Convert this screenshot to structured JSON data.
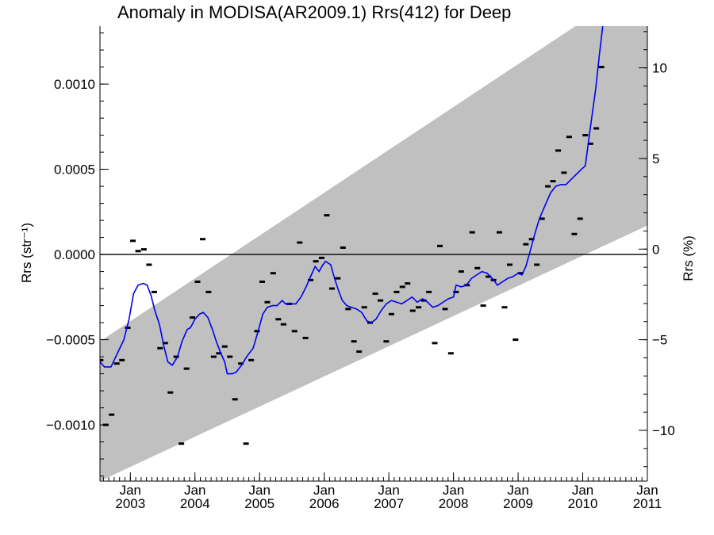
{
  "chart_data": {
    "type": "scatter",
    "title": "Anomaly in MODISA(AR2009.1) Rrs(412) for Deep",
    "ylabel": "Rrs (str⁻¹)",
    "y2label": "Rrs (%)",
    "xlim": [
      2002.53,
      2011.0
    ],
    "ylim": [
      -0.00133,
      0.00134
    ],
    "y2lim": [
      -12.8,
      12.3
    ],
    "y_ticks": [
      -0.001,
      -0.0005,
      0.0,
      0.0005,
      0.001
    ],
    "y_tick_labels": [
      "−0.0010",
      "−0.0005",
      "0.0000",
      "0.0005",
      "0.0010"
    ],
    "y2_ticks": [
      -10,
      -5,
      0,
      5,
      10
    ],
    "y2_tick_labels": [
      "−10",
      "−5",
      "0",
      "5",
      "10"
    ],
    "x_ticks": [
      2003,
      2004,
      2005,
      2006,
      2007,
      2008,
      2009,
      2010,
      2011
    ],
    "x_tick_month": "Jan",
    "x_tick_labels": [
      "2003",
      "2004",
      "2005",
      "2006",
      "2007",
      "2008",
      "2009",
      "2010",
      "2011"
    ],
    "zero_line": 0.0,
    "grid": false,
    "colors": {
      "band": "#c0c0c0",
      "smooth_line": "#0000ee",
      "markers": "#000000"
    },
    "band": {
      "upper": [
        [
          2002.53,
          -0.00051
        ],
        [
          2011.0,
          0.00162
        ]
      ],
      "lower": [
        [
          2002.53,
          -0.00133
        ],
        [
          2011.0,
          0.00017
        ]
      ]
    },
    "points": [
      [
        2002.54,
        -0.00062
      ],
      [
        2002.62,
        -0.001
      ],
      [
        2002.71,
        -0.00094
      ],
      [
        2002.79,
        -0.00064
      ],
      [
        2002.87,
        -0.00062
      ],
      [
        2002.96,
        -0.00043
      ],
      [
        2003.04,
        8e-05
      ],
      [
        2003.12,
        2e-05
      ],
      [
        2003.21,
        3e-05
      ],
      [
        2003.29,
        -6e-05
      ],
      [
        2003.37,
        -0.00022
      ],
      [
        2003.46,
        -0.00055
      ],
      [
        2003.54,
        -0.00052
      ],
      [
        2003.62,
        -0.00081
      ],
      [
        2003.71,
        -0.0006
      ],
      [
        2003.79,
        -0.00111
      ],
      [
        2003.87,
        -0.00067
      ],
      [
        2003.96,
        -0.00037
      ],
      [
        2004.04,
        -0.00016
      ],
      [
        2004.12,
        9e-05
      ],
      [
        2004.21,
        -0.00022
      ],
      [
        2004.29,
        -0.0006
      ],
      [
        2004.37,
        -0.00058
      ],
      [
        2004.46,
        -0.00054
      ],
      [
        2004.54,
        -0.0006
      ],
      [
        2004.62,
        -0.00085
      ],
      [
        2004.71,
        -0.00064
      ],
      [
        2004.79,
        -0.00111
      ],
      [
        2004.87,
        -0.00062
      ],
      [
        2004.96,
        -0.00045
      ],
      [
        2005.04,
        -0.00016
      ],
      [
        2005.12,
        -0.00028
      ],
      [
        2005.21,
        -0.00011
      ],
      [
        2005.29,
        -0.00038
      ],
      [
        2005.37,
        -0.00041
      ],
      [
        2005.46,
        -0.00029
      ],
      [
        2005.54,
        -0.00045
      ],
      [
        2005.62,
        7e-05
      ],
      [
        2005.71,
        -0.00049
      ],
      [
        2005.79,
        -0.00015
      ],
      [
        2005.87,
        -4e-05
      ],
      [
        2005.96,
        -2e-05
      ],
      [
        2006.04,
        0.00023
      ],
      [
        2006.12,
        -0.0002
      ],
      [
        2006.21,
        -0.00014
      ],
      [
        2006.29,
        4e-05
      ],
      [
        2006.37,
        -0.00032
      ],
      [
        2006.46,
        -0.00051
      ],
      [
        2006.54,
        -0.00057
      ],
      [
        2006.62,
        -0.00031
      ],
      [
        2006.71,
        -0.0004
      ],
      [
        2006.79,
        -0.00023
      ],
      [
        2006.87,
        -0.00027
      ],
      [
        2006.96,
        -0.00051
      ],
      [
        2007.04,
        -0.00035
      ],
      [
        2007.12,
        -0.00022
      ],
      [
        2007.21,
        -0.00019
      ],
      [
        2007.29,
        -0.00017
      ],
      [
        2007.37,
        -0.00033
      ],
      [
        2007.46,
        -0.00031
      ],
      [
        2007.54,
        -0.00027
      ],
      [
        2007.62,
        -0.00022
      ],
      [
        2007.71,
        -0.00052
      ],
      [
        2007.79,
        5e-05
      ],
      [
        2007.87,
        -0.00032
      ],
      [
        2007.96,
        -0.00058
      ],
      [
        2008.04,
        -0.00022
      ],
      [
        2008.12,
        -0.0001
      ],
      [
        2008.21,
        -0.00018
      ],
      [
        2008.29,
        0.00013
      ],
      [
        2008.37,
        -8e-05
      ],
      [
        2008.46,
        -0.0003
      ],
      [
        2008.54,
        -0.00013
      ],
      [
        2008.62,
        -0.00015
      ],
      [
        2008.71,
        0.00013
      ],
      [
        2008.79,
        -0.00031
      ],
      [
        2008.87,
        -6e-05
      ],
      [
        2008.96,
        -0.0005
      ],
      [
        2009.04,
        -0.00011
      ],
      [
        2009.12,
        6e-05
      ],
      [
        2009.21,
        9e-05
      ],
      [
        2009.29,
        -6e-05
      ],
      [
        2009.37,
        0.00021
      ],
      [
        2009.46,
        0.0004
      ],
      [
        2009.54,
        0.00043
      ],
      [
        2009.62,
        0.00061
      ],
      [
        2009.71,
        0.00048
      ],
      [
        2009.79,
        0.00069
      ],
      [
        2009.87,
        0.00012
      ],
      [
        2009.96,
        0.00021
      ],
      [
        2010.04,
        0.0007
      ],
      [
        2010.12,
        0.00065
      ],
      [
        2010.21,
        0.00074
      ],
      [
        2010.29,
        0.0011
      ]
    ],
    "smooth_line": [
      [
        2002.53,
        -0.00063
      ],
      [
        2002.6,
        -0.00066
      ],
      [
        2002.7,
        -0.00066
      ],
      [
        2002.8,
        -0.00058
      ],
      [
        2002.9,
        -0.0005
      ],
      [
        2002.98,
        -0.00038
      ],
      [
        2003.05,
        -0.00023
      ],
      [
        2003.12,
        -0.00018
      ],
      [
        2003.2,
        -0.00017
      ],
      [
        2003.26,
        -0.00018
      ],
      [
        2003.32,
        -0.00024
      ],
      [
        2003.38,
        -0.00033
      ],
      [
        2003.45,
        -0.00041
      ],
      [
        2003.52,
        -0.00054
      ],
      [
        2003.58,
        -0.00063
      ],
      [
        2003.65,
        -0.00065
      ],
      [
        2003.73,
        -0.0006
      ],
      [
        2003.8,
        -0.00051
      ],
      [
        2003.88,
        -0.00044
      ],
      [
        2003.93,
        -0.00043
      ],
      [
        2004.0,
        -0.00038
      ],
      [
        2004.07,
        -0.00035
      ],
      [
        2004.13,
        -0.00034
      ],
      [
        2004.2,
        -0.00037
      ],
      [
        2004.27,
        -0.00044
      ],
      [
        2004.33,
        -0.00051
      ],
      [
        2004.4,
        -0.00058
      ],
      [
        2004.46,
        -0.00063
      ],
      [
        2004.5,
        -0.0007
      ],
      [
        2004.58,
        -0.0007
      ],
      [
        2004.64,
        -0.00069
      ],
      [
        2004.72,
        -0.00065
      ],
      [
        2004.8,
        -0.0006
      ],
      [
        2004.9,
        -0.00055
      ],
      [
        2004.97,
        -0.00046
      ],
      [
        2005.05,
        -0.00035
      ],
      [
        2005.12,
        -0.00031
      ],
      [
        2005.2,
        -0.0003
      ],
      [
        2005.27,
        -0.0003
      ],
      [
        2005.35,
        -0.00027
      ],
      [
        2005.4,
        -0.00029
      ],
      [
        2005.48,
        -0.00029
      ],
      [
        2005.56,
        -0.00029
      ],
      [
        2005.64,
        -0.00025
      ],
      [
        2005.72,
        -0.00019
      ],
      [
        2005.8,
        -0.00012
      ],
      [
        2005.86,
        -7e-05
      ],
      [
        2005.92,
        -0.0001
      ],
      [
        2005.98,
        -6e-05
      ],
      [
        2006.02,
        -4e-05
      ],
      [
        2006.1,
        -6e-05
      ],
      [
        2006.16,
        -0.00014
      ],
      [
        2006.22,
        -0.00021
      ],
      [
        2006.28,
        -0.00027
      ],
      [
        2006.35,
        -0.0003
      ],
      [
        2006.42,
        -0.00031
      ],
      [
        2006.5,
        -0.00032
      ],
      [
        2006.58,
        -0.00034
      ],
      [
        2006.66,
        -0.00039
      ],
      [
        2006.73,
        -0.0004
      ],
      [
        2006.8,
        -0.00038
      ],
      [
        2006.88,
        -0.00033
      ],
      [
        2006.96,
        -0.00029
      ],
      [
        2007.04,
        -0.00027
      ],
      [
        2007.12,
        -0.00028
      ],
      [
        2007.2,
        -0.00029
      ],
      [
        2007.28,
        -0.00027
      ],
      [
        2007.36,
        -0.00025
      ],
      [
        2007.44,
        -0.00028
      ],
      [
        2007.52,
        -0.00026
      ],
      [
        2007.6,
        -0.00028
      ],
      [
        2007.68,
        -0.00031
      ],
      [
        2007.76,
        -0.0003
      ],
      [
        2007.84,
        -0.00028
      ],
      [
        2007.92,
        -0.00026
      ],
      [
        2008.0,
        -0.00025
      ],
      [
        2008.04,
        -0.00018
      ],
      [
        2008.12,
        -0.00019
      ],
      [
        2008.2,
        -0.00018
      ],
      [
        2008.28,
        -0.00014
      ],
      [
        2008.36,
        -0.00012
      ],
      [
        2008.44,
        -0.0001
      ],
      [
        2008.52,
        -0.00011
      ],
      [
        2008.6,
        -0.00014
      ],
      [
        2008.68,
        -0.00018
      ],
      [
        2008.76,
        -0.00016
      ],
      [
        2008.84,
        -0.00014
      ],
      [
        2008.92,
        -0.00013
      ],
      [
        2009.0,
        -0.00011
      ],
      [
        2009.06,
        -0.00012
      ],
      [
        2009.12,
        -7e-05
      ],
      [
        2009.18,
        1e-05
      ],
      [
        2009.25,
        0.00011
      ],
      [
        2009.33,
        0.00021
      ],
      [
        2009.42,
        0.00029
      ],
      [
        2009.5,
        0.00036
      ],
      [
        2009.58,
        0.0004
      ],
      [
        2009.66,
        0.00041
      ],
      [
        2009.74,
        0.00041
      ],
      [
        2009.82,
        0.00044
      ],
      [
        2009.9,
        0.00047
      ],
      [
        2009.98,
        0.0005
      ],
      [
        2010.04,
        0.00052
      ],
      [
        2010.12,
        0.00075
      ],
      [
        2010.2,
        0.00097
      ],
      [
        2010.26,
        0.00118
      ],
      [
        2010.31,
        0.00134
      ]
    ]
  }
}
